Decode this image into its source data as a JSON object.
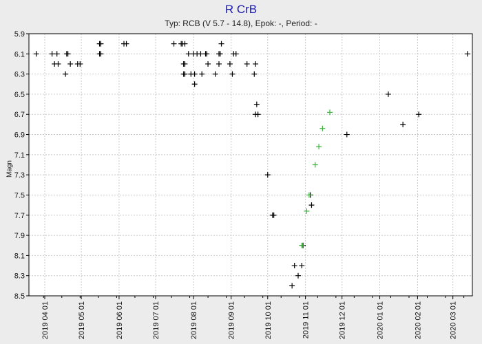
{
  "chart_data": {
    "type": "scatter",
    "title": "R CrB",
    "subtitle": "Typ: RCB (V 5.7 - 14.8), Epok: -, Period: -",
    "ylabel": "Magn",
    "xlabel": "",
    "ylim": [
      5.9,
      8.5
    ],
    "y_inverted": true,
    "xlim": [
      "2019-03-19",
      "2020-03-17"
    ],
    "y_ticks": [
      "5.9",
      "6.1",
      "6.3",
      "6.5",
      "6.7",
      "6.9",
      "7.1",
      "7.3",
      "7.5",
      "7.7",
      "7.9",
      "8.1",
      "8.3",
      "8.5"
    ],
    "x_ticks": [
      "2019 04 01",
      "2019 05 01",
      "2019 06 01",
      "2019 07 01",
      "2019 08 01",
      "2019 09 01",
      "2019 10 01",
      "2019 11 01",
      "2019 12 01",
      "2020 01 01",
      "2020 02 01",
      "2020 03 01"
    ],
    "grid": true,
    "colors": {
      "visual": "#000000",
      "v_band": "#3cb43c",
      "title": "#1a1ab0"
    },
    "series": [
      {
        "marker": "plus",
        "color": "#000000",
        "points": [
          [
            "2019-03-25",
            6.1
          ],
          [
            "2019-04-07",
            6.1
          ],
          [
            "2019-04-09",
            6.2
          ],
          [
            "2019-04-11",
            6.1
          ],
          [
            "2019-04-12",
            6.2
          ],
          [
            "2019-04-18",
            6.3
          ],
          [
            "2019-04-19",
            6.1
          ],
          [
            "2019-04-20",
            6.1
          ],
          [
            "2019-04-22",
            6.2
          ],
          [
            "2019-04-28",
            6.2
          ],
          [
            "2019-04-30",
            6.2
          ],
          [
            "2019-05-16",
            6.0
          ],
          [
            "2019-05-17",
            6.0
          ],
          [
            "2019-05-16",
            6.1
          ],
          [
            "2019-05-17",
            6.1
          ],
          [
            "2019-06-05",
            6.0
          ],
          [
            "2019-06-07",
            6.0
          ],
          [
            "2019-07-16",
            6.0
          ],
          [
            "2019-07-22",
            6.0
          ],
          [
            "2019-07-23",
            6.0
          ],
          [
            "2019-07-25",
            6.0
          ],
          [
            "2019-07-24",
            6.2
          ],
          [
            "2019-07-25",
            6.2
          ],
          [
            "2019-07-24",
            6.3
          ],
          [
            "2019-07-25",
            6.3
          ],
          [
            "2019-07-28",
            6.1
          ],
          [
            "2019-07-30",
            6.3
          ],
          [
            "2019-08-01",
            6.1
          ],
          [
            "2019-08-02",
            6.3
          ],
          [
            "2019-08-02",
            6.4
          ],
          [
            "2019-08-04",
            6.1
          ],
          [
            "2019-08-07",
            6.1
          ],
          [
            "2019-08-08",
            6.3
          ],
          [
            "2019-08-11",
            6.1
          ],
          [
            "2019-08-12",
            6.1
          ],
          [
            "2019-08-13",
            6.2
          ],
          [
            "2019-08-19",
            6.3
          ],
          [
            "2019-08-22",
            6.1
          ],
          [
            "2019-08-22",
            6.2
          ],
          [
            "2019-08-23",
            6.1
          ],
          [
            "2019-08-24",
            6.0
          ],
          [
            "2019-08-31",
            6.2
          ],
          [
            "2019-09-02",
            6.3
          ],
          [
            "2019-09-03",
            6.1
          ],
          [
            "2019-09-05",
            6.1
          ],
          [
            "2019-09-14",
            6.2
          ],
          [
            "2019-09-20",
            6.3
          ],
          [
            "2019-09-21",
            6.2
          ],
          [
            "2019-09-21",
            6.7
          ],
          [
            "2019-09-22",
            6.6
          ],
          [
            "2019-09-23",
            6.7
          ],
          [
            "2019-10-01",
            7.3
          ],
          [
            "2019-10-05",
            7.7
          ],
          [
            "2019-10-06",
            7.7
          ],
          [
            "2019-10-21",
            8.4
          ],
          [
            "2019-10-23",
            8.2
          ],
          [
            "2019-10-26",
            8.3
          ],
          [
            "2019-10-29",
            8.2
          ],
          [
            "2019-10-30",
            8.0
          ],
          [
            "2019-11-05",
            7.5
          ],
          [
            "2019-11-06",
            7.6
          ],
          [
            "2019-12-05",
            6.9
          ],
          [
            "2020-01-08",
            6.5
          ],
          [
            "2020-01-20",
            6.8
          ],
          [
            "2020-02-02",
            6.7
          ],
          [
            "2020-03-13",
            6.1
          ]
        ]
      },
      {
        "marker": "plus",
        "color": "#3cb43c",
        "points": [
          [
            "2019-10-29",
            8.0
          ],
          [
            "2019-11-02",
            7.66
          ],
          [
            "2019-11-04",
            7.5
          ],
          [
            "2019-11-09",
            7.2
          ],
          [
            "2019-11-12",
            7.02
          ],
          [
            "2019-11-15",
            6.84
          ],
          [
            "2019-11-21",
            6.68
          ]
        ]
      }
    ]
  }
}
